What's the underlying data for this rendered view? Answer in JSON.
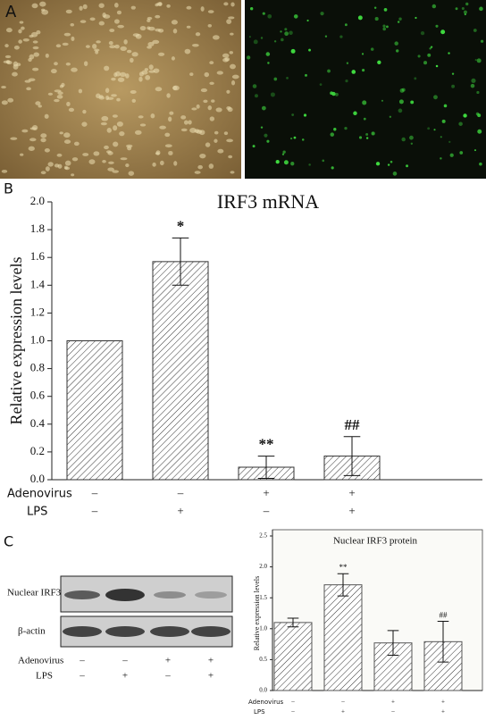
{
  "panels": {
    "a": "A",
    "b": "B",
    "c": "C"
  },
  "blot": {
    "rows": [
      "Nuclear IRF3",
      "β-actin"
    ],
    "conditions": [
      {
        "name": "Adenovirus",
        "values": [
          "–",
          "–",
          "+",
          "+"
        ]
      },
      {
        "name": "LPS",
        "values": [
          "–",
          "+",
          "–",
          "+"
        ]
      }
    ]
  },
  "chart_data": [
    {
      "type": "bar",
      "title": "IRF3 mRNA",
      "y_label": "Relative expression levels",
      "categories": [
        null,
        null,
        null,
        null
      ],
      "values": [
        1.0,
        1.57,
        0.09,
        0.17
      ],
      "errors": [
        0,
        0.17,
        0.08,
        0.14
      ],
      "annotations": [
        null,
        "*",
        "**",
        "##"
      ],
      "conditions": [
        {
          "name": "Adenovirus",
          "values": [
            "–",
            "–",
            "+",
            "+"
          ]
        },
        {
          "name": "LPS",
          "values": [
            "–",
            "+",
            "–",
            "+"
          ]
        }
      ],
      "ylim": [
        0,
        2.0
      ],
      "yticks": [
        {
          "value": 0,
          "label": "0.0"
        },
        {
          "value": 0.2,
          "label": "0.2"
        },
        {
          "value": 0.4,
          "label": "0.4"
        },
        {
          "value": 0.6,
          "label": "0.6"
        },
        {
          "value": 0.8,
          "label": "0.8"
        },
        {
          "value": 1.0,
          "label": "1.0"
        },
        {
          "value": 1.2,
          "label": "1.2"
        },
        {
          "value": 1.4,
          "label": "1.4"
        },
        {
          "value": 1.6,
          "label": "1.6"
        },
        {
          "value": 1.8,
          "label": "1.8"
        },
        {
          "value": 2.0,
          "label": "2.0"
        }
      ],
      "color": "#333333"
    },
    {
      "type": "bar",
      "title": "Nuclear IRF3 protein",
      "y_label": "Relative expression levels",
      "categories": [
        null,
        null,
        null,
        null
      ],
      "values": [
        1.1,
        1.71,
        0.77,
        0.79
      ],
      "errors": [
        0.07,
        0.18,
        0.2,
        0.33
      ],
      "annotations": [
        null,
        "**",
        null,
        "##"
      ],
      "conditions": [
        {
          "name": "Adenovirus",
          "values": [
            "–",
            "–",
            "+",
            "+"
          ]
        },
        {
          "name": "LPS",
          "values": [
            "–",
            "+",
            "–",
            "+"
          ]
        }
      ],
      "ylim": [
        0,
        2.5
      ],
      "yticks": [
        {
          "value": 0,
          "label": "0.0"
        },
        {
          "value": 0.5,
          "label": "0.5"
        },
        {
          "value": 1.0,
          "label": "1.0"
        },
        {
          "value": 1.5,
          "label": "1.5"
        },
        {
          "value": 2.0,
          "label": "2.0"
        },
        {
          "value": 2.5,
          "label": "2.5"
        }
      ],
      "color": "#555555"
    }
  ]
}
